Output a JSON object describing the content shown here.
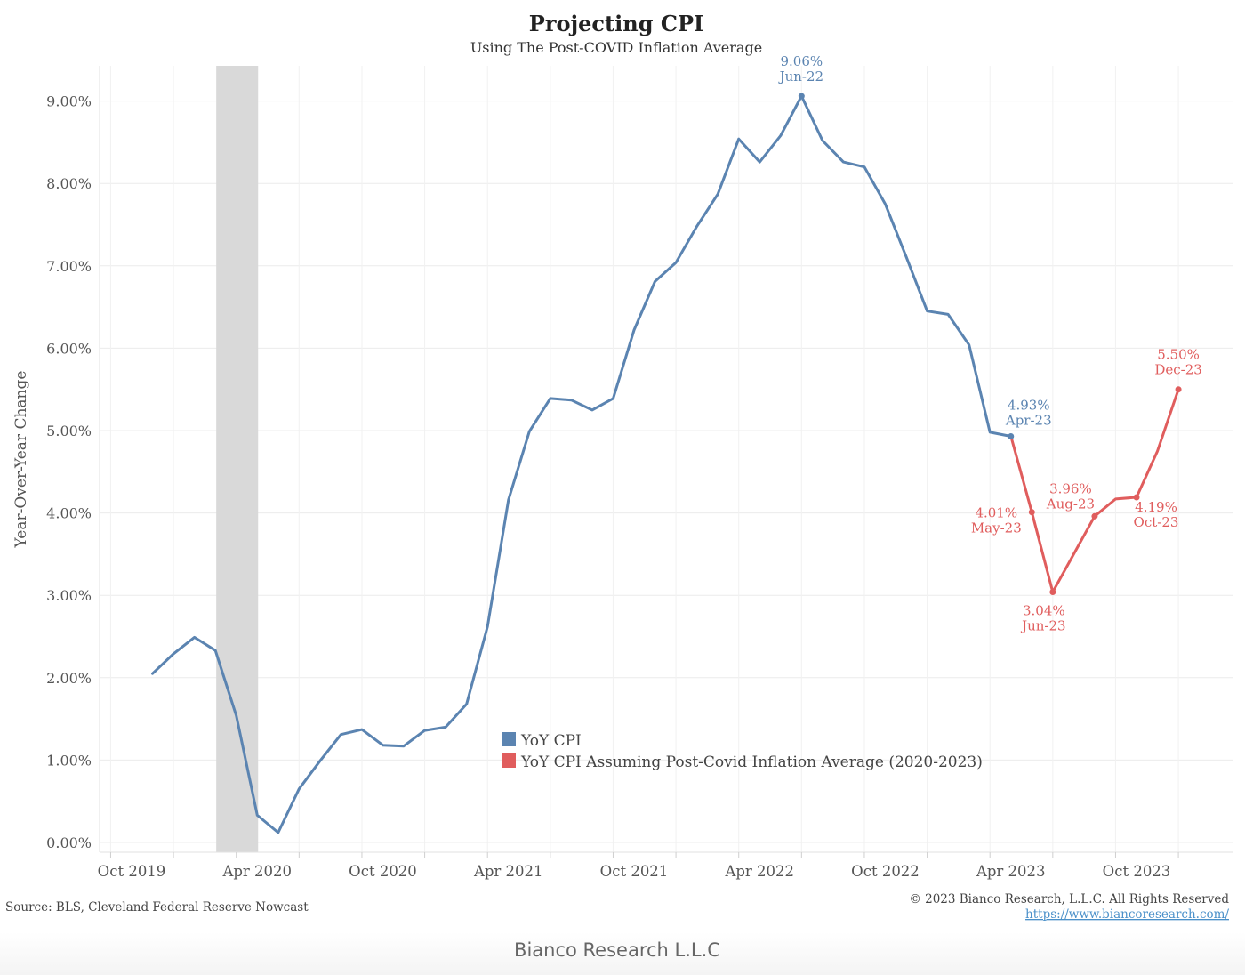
{
  "title": "Projecting CPI",
  "subtitle": "Using The Post-COVID Inflation Average",
  "source": "Source: BLS, Cleveland Federal Reserve Nowcast",
  "copyright": "© 2023 Bianco Research, L.L.C. All Rights Reserved",
  "url": "https://www.biancoresearch.com/",
  "footer": "Bianco Research L.L.C",
  "colors": {
    "actual": "#5b84b1",
    "projected": "#e05d5d",
    "recession_band": "#d9d9d9"
  },
  "chart_data": {
    "type": "line",
    "title": "Projecting CPI",
    "subtitle": "Using The Post-COVID Inflation Average",
    "xlabel": "",
    "ylabel": "Year-Over-Year Change",
    "ylim": [
      0,
      9.5
    ],
    "y_ticks": [
      "0.00%",
      "1.00%",
      "2.00%",
      "3.00%",
      "4.00%",
      "5.00%",
      "6.00%",
      "7.00%",
      "8.00%",
      "9.00%"
    ],
    "x_ticks": [
      {
        "label": "Oct 2019",
        "date": "2019-10"
      },
      {
        "label": "Apr 2020",
        "date": "2020-04"
      },
      {
        "label": "Oct 2020",
        "date": "2020-10"
      },
      {
        "label": "Apr 2021",
        "date": "2021-04"
      },
      {
        "label": "Oct 2021",
        "date": "2021-10"
      },
      {
        "label": "Apr 2022",
        "date": "2022-04"
      },
      {
        "label": "Oct 2022",
        "date": "2022-10"
      },
      {
        "label": "Apr 2023",
        "date": "2023-04"
      },
      {
        "label": "Oct 2023",
        "date": "2023-10"
      }
    ],
    "shaded_period": {
      "start": "2020-02",
      "end": "2020-04"
    },
    "grid": true,
    "legend_position": "center",
    "series": [
      {
        "name": "YoY CPI",
        "color": "#5b84b1",
        "points": [
          {
            "x": "2019-11",
            "y": 2.05
          },
          {
            "x": "2019-12",
            "y": 2.29
          },
          {
            "x": "2020-01",
            "y": 2.49
          },
          {
            "x": "2020-02",
            "y": 2.33
          },
          {
            "x": "2020-03",
            "y": 1.54
          },
          {
            "x": "2020-04",
            "y": 0.33
          },
          {
            "x": "2020-05",
            "y": 0.12
          },
          {
            "x": "2020-06",
            "y": 0.65
          },
          {
            "x": "2020-07",
            "y": 0.99
          },
          {
            "x": "2020-08",
            "y": 1.31
          },
          {
            "x": "2020-09",
            "y": 1.37
          },
          {
            "x": "2020-10",
            "y": 1.18
          },
          {
            "x": "2020-11",
            "y": 1.17
          },
          {
            "x": "2020-12",
            "y": 1.36
          },
          {
            "x": "2021-01",
            "y": 1.4
          },
          {
            "x": "2021-02",
            "y": 1.68
          },
          {
            "x": "2021-03",
            "y": 2.62
          },
          {
            "x": "2021-04",
            "y": 4.16
          },
          {
            "x": "2021-05",
            "y": 4.99
          },
          {
            "x": "2021-06",
            "y": 5.39
          },
          {
            "x": "2021-07",
            "y": 5.37
          },
          {
            "x": "2021-08",
            "y": 5.25
          },
          {
            "x": "2021-09",
            "y": 5.39
          },
          {
            "x": "2021-10",
            "y": 6.22
          },
          {
            "x": "2021-11",
            "y": 6.81
          },
          {
            "x": "2021-12",
            "y": 7.04
          },
          {
            "x": "2022-01",
            "y": 7.48
          },
          {
            "x": "2022-02",
            "y": 7.87
          },
          {
            "x": "2022-03",
            "y": 8.54
          },
          {
            "x": "2022-04",
            "y": 8.26
          },
          {
            "x": "2022-05",
            "y": 8.58
          },
          {
            "x": "2022-06",
            "y": 9.06
          },
          {
            "x": "2022-07",
            "y": 8.52
          },
          {
            "x": "2022-08",
            "y": 8.26
          },
          {
            "x": "2022-09",
            "y": 8.2
          },
          {
            "x": "2022-10",
            "y": 7.75
          },
          {
            "x": "2022-11",
            "y": 7.11
          },
          {
            "x": "2022-12",
            "y": 6.45
          },
          {
            "x": "2023-01",
            "y": 6.41
          },
          {
            "x": "2023-02",
            "y": 6.04
          },
          {
            "x": "2023-03",
            "y": 4.98
          },
          {
            "x": "2023-04",
            "y": 4.93
          }
        ]
      },
      {
        "name": "YoY CPI Assuming Post-Covid Inflation Average (2020-2023)",
        "color": "#e05d5d",
        "points": [
          {
            "x": "2023-04",
            "y": 4.93
          },
          {
            "x": "2023-05",
            "y": 4.01
          },
          {
            "x": "2023-06",
            "y": 3.04
          },
          {
            "x": "2023-07",
            "y": 3.5
          },
          {
            "x": "2023-08",
            "y": 3.96
          },
          {
            "x": "2023-09",
            "y": 4.17
          },
          {
            "x": "2023-10",
            "y": 4.19
          },
          {
            "x": "2023-11",
            "y": 4.75
          },
          {
            "x": "2023-12",
            "y": 5.5
          }
        ]
      }
    ],
    "annotations": [
      {
        "x": "2022-06",
        "y": 9.06,
        "value": "9.06%",
        "date": "Jun-22",
        "series": 0,
        "place": "above"
      },
      {
        "x": "2023-04",
        "y": 4.93,
        "value": "4.93%",
        "date": "Apr-23",
        "series": 0,
        "place": "above-right"
      },
      {
        "x": "2023-05",
        "y": 4.01,
        "value": "4.01%",
        "date": "May-23",
        "series": 1,
        "place": "left"
      },
      {
        "x": "2023-06",
        "y": 3.04,
        "value": "3.04%",
        "date": "Jun-23",
        "series": 1,
        "place": "below"
      },
      {
        "x": "2023-08",
        "y": 3.96,
        "value": "3.96%",
        "date": "Aug-23",
        "series": 1,
        "place": "above-left"
      },
      {
        "x": "2023-10",
        "y": 4.19,
        "value": "4.19%",
        "date": "Oct-23",
        "series": 1,
        "place": "below-right"
      },
      {
        "x": "2023-12",
        "y": 5.5,
        "value": "5.50%",
        "date": "Dec-23",
        "series": 1,
        "place": "above"
      }
    ]
  }
}
